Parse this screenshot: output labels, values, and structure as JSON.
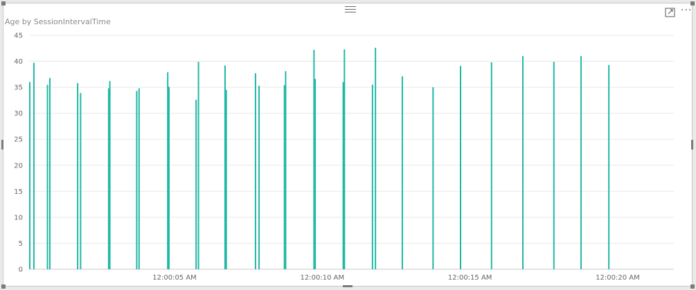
{
  "visual": {
    "focus_icon": "focus-mode-icon",
    "more_icon": "more-options-icon",
    "more_glyph": "···",
    "drag_icon": "drag-handle-icon"
  },
  "chart_data": {
    "type": "bar",
    "title": "Age by SessionIntervalTime",
    "xlabel": "",
    "ylabel": "",
    "ylim": [
      0,
      45
    ],
    "yticks": [
      0,
      5,
      10,
      15,
      20,
      25,
      30,
      35,
      40,
      45
    ],
    "xlim": [
      "12:00:00.1 AM",
      "12:00:21.9 AM"
    ],
    "xticks": [
      {
        "time": "12:00:05 AM",
        "label": "12:00:05 AM"
      },
      {
        "time": "12:00:10 AM",
        "label": "12:00:10 AM"
      },
      {
        "time": "12:00:15 AM",
        "label": "12:00:15 AM"
      },
      {
        "time": "12:00:20 AM",
        "label": "12:00:20 AM"
      }
    ],
    "grid": true,
    "series": [
      {
        "color": "#1fb8a4",
        "points": [
          {
            "time": "12:00:00.10 AM",
            "value": 36
          },
          {
            "time": "12:00:00.24 AM",
            "value": 39.7
          },
          {
            "time": "12:00:00.70 AM",
            "value": 35.5
          },
          {
            "time": "12:00:00.78 AM",
            "value": 36.8
          },
          {
            "time": "12:00:01.72 AM",
            "value": 35.8
          },
          {
            "time": "12:00:01.82 AM",
            "value": 33.9
          },
          {
            "time": "12:00:02.77 AM",
            "value": 34.8
          },
          {
            "time": "12:00:02.81 AM",
            "value": 36.2
          },
          {
            "time": "12:00:03.72 AM",
            "value": 34.3
          },
          {
            "time": "12:00:03.80 AM",
            "value": 34.8
          },
          {
            "time": "12:00:04.77 AM",
            "value": 37.9
          },
          {
            "time": "12:00:04.81 AM",
            "value": 35.1
          },
          {
            "time": "12:00:05.73 AM",
            "value": 32.6
          },
          {
            "time": "12:00:05.81 AM",
            "value": 39.9
          },
          {
            "time": "12:00:06.71 AM",
            "value": 39.2
          },
          {
            "time": "12:00:06.75 AM",
            "value": 34.5
          },
          {
            "time": "12:00:07.74 AM",
            "value": 37.7
          },
          {
            "time": "12:00:07.86 AM",
            "value": 35.3
          },
          {
            "time": "12:00:08.72 AM",
            "value": 35.4
          },
          {
            "time": "12:00:08.76 AM",
            "value": 38.1
          },
          {
            "time": "12:00:09.72 AM",
            "value": 42.2
          },
          {
            "time": "12:00:09.76 AM",
            "value": 36.6
          },
          {
            "time": "12:00:10.71 AM",
            "value": 36
          },
          {
            "time": "12:00:10.75 AM",
            "value": 42.3
          },
          {
            "time": "12:00:11.70 AM",
            "value": 35.5
          },
          {
            "time": "12:00:11.80 AM",
            "value": 42.6
          },
          {
            "time": "12:00:12.71 AM",
            "value": 37.1
          },
          {
            "time": "12:00:13.75 AM",
            "value": 35
          },
          {
            "time": "12:00:14.68 AM",
            "value": 39.1
          },
          {
            "time": "12:00:15.73 AM",
            "value": 39.8
          },
          {
            "time": "12:00:16.79 AM",
            "value": 41
          },
          {
            "time": "12:00:17.84 AM",
            "value": 39.9
          },
          {
            "time": "12:00:18.76 AM",
            "value": 41
          },
          {
            "time": "12:00:19.70 AM",
            "value": 39.3
          }
        ]
      }
    ]
  }
}
